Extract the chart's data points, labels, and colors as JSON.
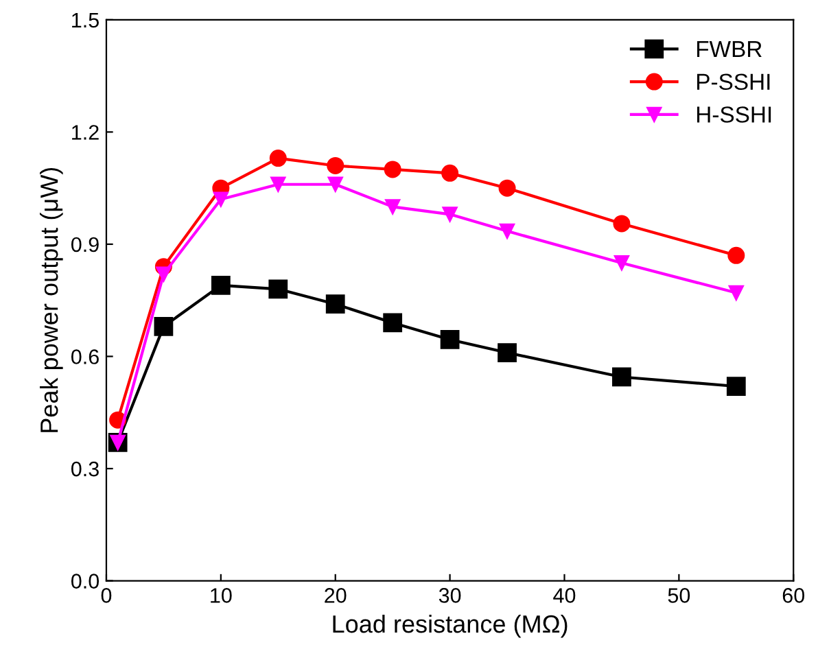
{
  "chart_data": {
    "type": "line",
    "xlabel": "Load resistance (MΩ)",
    "ylabel": "Peak power output (μW)",
    "x": [
      1,
      5,
      10,
      15,
      20,
      25,
      30,
      35,
      45,
      55
    ],
    "series": [
      {
        "name": "FWBR",
        "color": "#000000",
        "marker": "square",
        "values": [
          0.37,
          0.68,
          0.79,
          0.78,
          0.74,
          0.69,
          0.645,
          0.61,
          0.545,
          0.52
        ]
      },
      {
        "name": "P-SSHI",
        "color": "#ff0000",
        "marker": "circle",
        "values": [
          0.43,
          0.84,
          1.05,
          1.13,
          1.11,
          1.1,
          1.09,
          1.05,
          0.955,
          0.87
        ]
      },
      {
        "name": "H-SSHI",
        "color": "#ff00ff",
        "marker": "triangle",
        "values": [
          0.37,
          0.82,
          1.02,
          1.06,
          1.06,
          1.0,
          0.98,
          0.935,
          0.85,
          0.77
        ]
      }
    ],
    "xlim": [
      0,
      60
    ],
    "xticks": [
      0,
      10,
      20,
      30,
      40,
      50,
      60
    ],
    "ylim": [
      0,
      1.5
    ],
    "yticks": [
      {
        "value": 0,
        "label": "0.0"
      },
      0.3,
      0.6,
      0.9,
      1.2,
      1.5
    ],
    "grid": false,
    "legend": "top right",
    "line_style": "solid"
  }
}
